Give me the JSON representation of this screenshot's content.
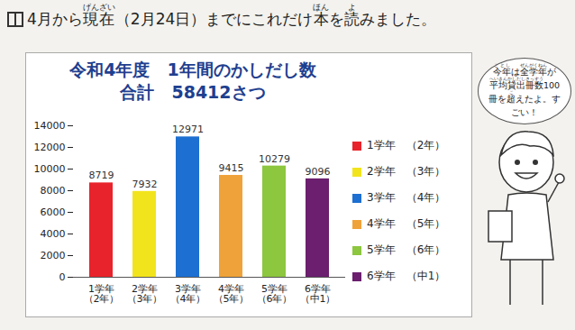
{
  "header": {
    "segments": [
      {
        "text": "4月から"
      },
      {
        "text": "現在",
        "ruby": "げんざい"
      },
      {
        "text": "（2月24日）までにこれだけ"
      },
      {
        "text": "本",
        "ruby": "ほん"
      },
      {
        "text": "を"
      },
      {
        "text": "読",
        "ruby": "よ"
      },
      {
        "text": "みました。"
      }
    ]
  },
  "speech_bubble": {
    "segments": [
      {
        "text": "今年",
        "ruby": "ことし"
      },
      {
        "text": "は"
      },
      {
        "text": "全学年",
        "ruby": "ぜんがくねん"
      },
      {
        "text": "が"
      },
      {
        "text": "平均",
        "ruby": "へいきん"
      },
      {
        "text": "貸出冊数",
        "ruby": "かしだしさっすう"
      },
      {
        "text": "100冊を"
      },
      {
        "text": "超",
        "ruby": "こ"
      },
      {
        "text": "えたよ。すごい！"
      }
    ]
  },
  "chart_data": {
    "type": "bar",
    "title": "令和4年度　1年間のかしだし数",
    "subtitle": "合計　58412さつ",
    "categories": [
      "1学年\n（2年）",
      "2学年\n（3年）",
      "3学年\n（4年）",
      "4学年\n（5年）",
      "5学年\n（6年）",
      "6学年\n（中1）"
    ],
    "values": [
      8719,
      7932,
      12971,
      9415,
      10279,
      9096
    ],
    "colors": [
      "#e8232b",
      "#f2e41c",
      "#1d6fd1",
      "#f0a23a",
      "#8dc63f",
      "#6b1f6e"
    ],
    "ylim": [
      0,
      14000
    ],
    "yticks": [
      0,
      2000,
      4000,
      6000,
      8000,
      10000,
      12000,
      14000
    ],
    "grid": false,
    "data_labels": true,
    "legend": "right"
  }
}
